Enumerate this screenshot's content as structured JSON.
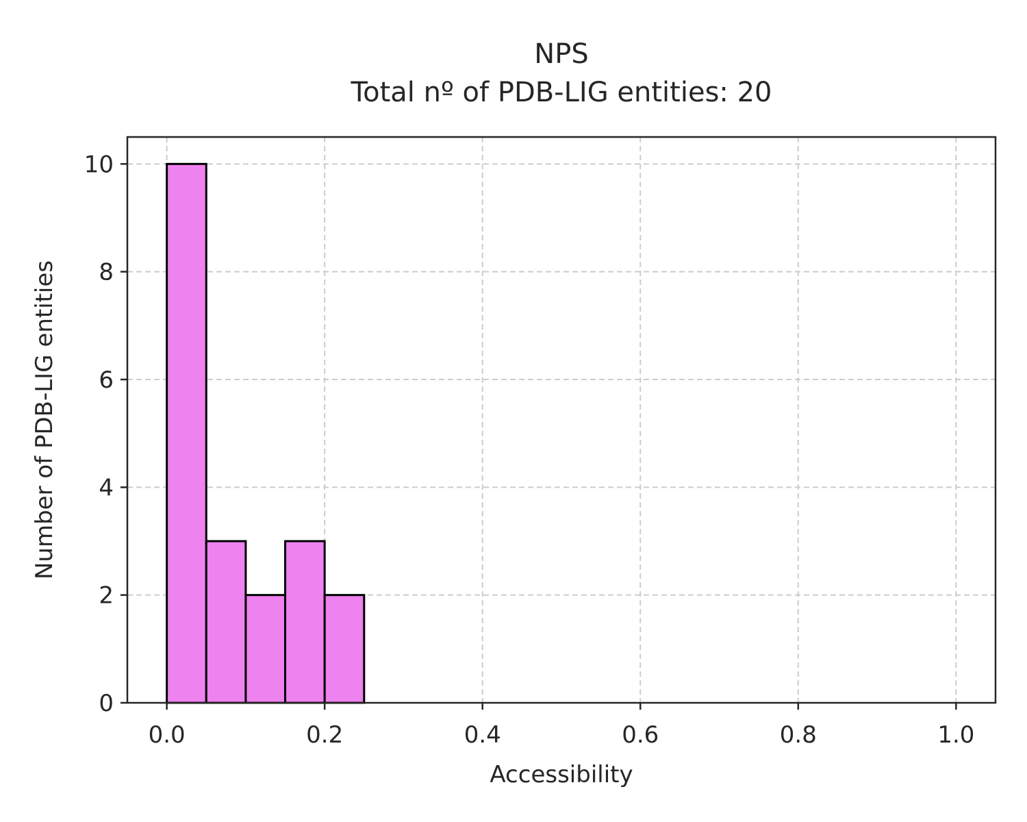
{
  "chart_data": {
    "type": "bar",
    "title_lines": [
      "NPS",
      "Total nº of PDB-LIG entities: 20"
    ],
    "xlabel": "Accessibility",
    "ylabel": "Number of PDB-LIG entities",
    "xlim": [
      -0.05,
      1.05
    ],
    "ylim": [
      0,
      10.5
    ],
    "xticks": [
      0.0,
      0.2,
      0.4,
      0.6,
      0.8,
      1.0
    ],
    "xtick_labels": [
      "0.0",
      "0.2",
      "0.4",
      "0.6",
      "0.8",
      "1.0"
    ],
    "yticks": [
      0,
      2,
      4,
      6,
      8,
      10
    ],
    "ytick_labels": [
      "0",
      "2",
      "4",
      "6",
      "8",
      "10"
    ],
    "grid": true,
    "bin_edges": [
      0.0,
      0.05,
      0.1,
      0.15,
      0.2,
      0.25
    ],
    "values": [
      10,
      3,
      2,
      3,
      2
    ],
    "bar_color": "#ee82ee",
    "edge_color": "#000000"
  }
}
